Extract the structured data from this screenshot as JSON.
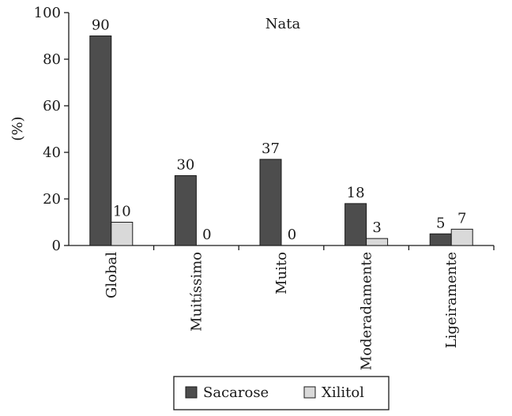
{
  "chart_data": {
    "type": "bar",
    "title": "Nata",
    "ylabel": "(%)",
    "xlabel": "",
    "ylim": [
      0,
      100
    ],
    "yticks": [
      0,
      20,
      40,
      60,
      80,
      100
    ],
    "categories": [
      "Global",
      "Muitíssimo",
      "Muito",
      "Moderadamente",
      "Ligeiramente"
    ],
    "series": [
      {
        "name": "Sacarose",
        "color": "#4d4d4d",
        "values": [
          90,
          30,
          37,
          18,
          5
        ]
      },
      {
        "name": "Xilitol",
        "color": "#d9d9d9",
        "values": [
          10,
          0,
          0,
          3,
          7
        ]
      }
    ],
    "legend_position": "bottom"
  }
}
